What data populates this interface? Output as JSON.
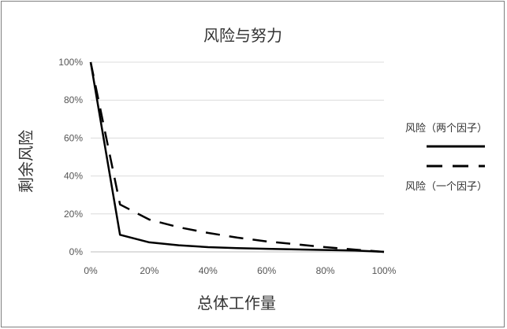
{
  "chart_data": {
    "type": "line",
    "title": "风险与努力",
    "xlabel": "总体工作量",
    "ylabel": "剩余风险",
    "xlim": [
      0,
      100
    ],
    "ylim": [
      0,
      100
    ],
    "x_ticks": [
      "0%",
      "20%",
      "40%",
      "60%",
      "80%",
      "100%"
    ],
    "y_ticks": [
      "0%",
      "20%",
      "40%",
      "60%",
      "80%",
      "100%"
    ],
    "grid": "horizontal",
    "legend_position": "right",
    "series": [
      {
        "name": "风险（两个因子）",
        "style": "solid",
        "color": "#000000",
        "x": [
          0,
          10,
          20,
          30,
          40,
          50,
          60,
          70,
          80,
          90,
          100
        ],
        "y": [
          100,
          9,
          5,
          3.5,
          2.5,
          2,
          1.6,
          1.3,
          1,
          0.7,
          0
        ]
      },
      {
        "name": "风险（一个因子）",
        "style": "dashed",
        "color": "#000000",
        "x": [
          0,
          10,
          20,
          30,
          40,
          50,
          60,
          70,
          80,
          90,
          100
        ],
        "y": [
          100,
          25,
          17,
          13,
          10,
          7.5,
          5.5,
          4,
          2.5,
          1.2,
          0
        ]
      }
    ]
  }
}
